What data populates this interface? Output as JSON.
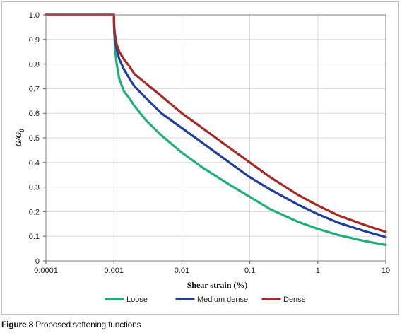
{
  "caption": {
    "label": "Figure 8",
    "text": "Proposed softening functions"
  },
  "chart_data": {
    "type": "line",
    "xscale": "log",
    "xlabel": "Shear strain (%)",
    "ylabel_main": "G/G",
    "ylabel_sub": "0",
    "xlim": [
      0.0001,
      10
    ],
    "ylim": [
      0,
      1.0
    ],
    "grid": true,
    "legend_position": "bottom",
    "x_ticks": [
      {
        "value": 0.0001,
        "label": "0.0001"
      },
      {
        "value": 0.001,
        "label": "0.001"
      },
      {
        "value": 0.01,
        "label": "0.01"
      },
      {
        "value": 0.1,
        "label": "0.1"
      },
      {
        "value": 1,
        "label": "1"
      },
      {
        "value": 10,
        "label": "10"
      }
    ],
    "y_ticks": [
      {
        "value": 0,
        "label": "0"
      },
      {
        "value": 0.1,
        "label": "0.1"
      },
      {
        "value": 0.2,
        "label": "0.2"
      },
      {
        "value": 0.3,
        "label": "0.3"
      },
      {
        "value": 0.4,
        "label": "0.4"
      },
      {
        "value": 0.5,
        "label": "0.5"
      },
      {
        "value": 0.6,
        "label": "0.6"
      },
      {
        "value": 0.7,
        "label": "0.7"
      },
      {
        "value": 0.8,
        "label": "0.8"
      },
      {
        "value": 0.9,
        "label": "0.9"
      },
      {
        "value": 1.0,
        "label": "1.0"
      }
    ],
    "series": [
      {
        "name": "Loose",
        "color": "#1fae7a",
        "points": [
          [
            0.0001,
            1.0
          ],
          [
            0.001,
            1.0
          ],
          [
            0.00101,
            0.93
          ],
          [
            0.00105,
            0.85
          ],
          [
            0.0011,
            0.8
          ],
          [
            0.0012,
            0.74
          ],
          [
            0.0014,
            0.69
          ],
          [
            0.0017,
            0.66
          ],
          [
            0.002,
            0.63
          ],
          [
            0.003,
            0.57
          ],
          [
            0.005,
            0.51
          ],
          [
            0.01,
            0.44
          ],
          [
            0.02,
            0.38
          ],
          [
            0.05,
            0.31
          ],
          [
            0.1,
            0.26
          ],
          [
            0.2,
            0.21
          ],
          [
            0.5,
            0.16
          ],
          [
            1,
            0.13
          ],
          [
            2,
            0.105
          ],
          [
            5,
            0.08
          ],
          [
            10,
            0.065
          ]
        ]
      },
      {
        "name": "Medium dense",
        "color": "#1f3f9a",
        "points": [
          [
            0.0001,
            1.0
          ],
          [
            0.001,
            1.0
          ],
          [
            0.00101,
            0.94
          ],
          [
            0.00105,
            0.89
          ],
          [
            0.0011,
            0.86
          ],
          [
            0.0012,
            0.82
          ],
          [
            0.0014,
            0.78
          ],
          [
            0.0017,
            0.74
          ],
          [
            0.002,
            0.71
          ],
          [
            0.003,
            0.66
          ],
          [
            0.005,
            0.6
          ],
          [
            0.01,
            0.54
          ],
          [
            0.02,
            0.48
          ],
          [
            0.05,
            0.4
          ],
          [
            0.1,
            0.34
          ],
          [
            0.2,
            0.29
          ],
          [
            0.5,
            0.23
          ],
          [
            1,
            0.19
          ],
          [
            2,
            0.155
          ],
          [
            5,
            0.12
          ],
          [
            10,
            0.097
          ]
        ]
      },
      {
        "name": "Dense",
        "color": "#a32a25",
        "points": [
          [
            0.0001,
            1.0
          ],
          [
            0.001,
            1.0
          ],
          [
            0.00101,
            0.95
          ],
          [
            0.00105,
            0.91
          ],
          [
            0.0011,
            0.88
          ],
          [
            0.0012,
            0.85
          ],
          [
            0.0014,
            0.82
          ],
          [
            0.0017,
            0.79
          ],
          [
            0.002,
            0.76
          ],
          [
            0.003,
            0.72
          ],
          [
            0.005,
            0.67
          ],
          [
            0.01,
            0.6
          ],
          [
            0.02,
            0.54
          ],
          [
            0.05,
            0.46
          ],
          [
            0.1,
            0.4
          ],
          [
            0.2,
            0.34
          ],
          [
            0.5,
            0.27
          ],
          [
            1,
            0.225
          ],
          [
            2,
            0.185
          ],
          [
            5,
            0.145
          ],
          [
            10,
            0.118
          ]
        ]
      }
    ]
  }
}
